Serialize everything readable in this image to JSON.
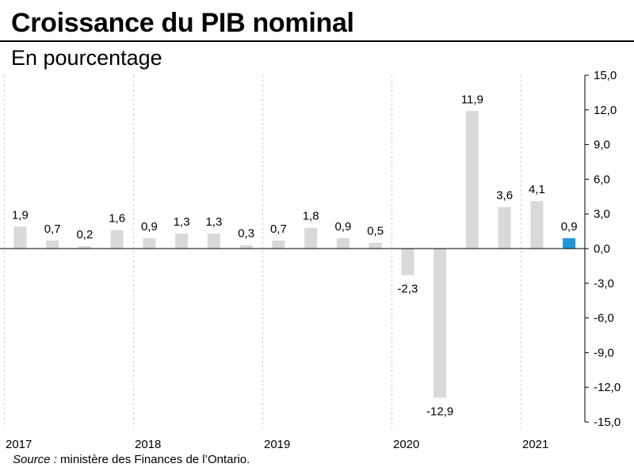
{
  "title": "Croissance du PIB nominal",
  "subtitle": "En pourcentage",
  "source": {
    "label": "Source :",
    "text": " ministère des Finances de l’Ontario."
  },
  "colors": {
    "bar": "#d9d9d9",
    "highlight": "#1f98dd",
    "grid": "#d0d0d0",
    "axis": "#000000"
  },
  "chart_data": {
    "type": "bar",
    "title": "Croissance du PIB nominal",
    "subtitle": "En pourcentage",
    "ylim": [
      -15,
      15
    ],
    "yticks": [
      "15,0",
      "12,0",
      "9,0",
      "6,0",
      "3,0",
      "0,0",
      "-3,0",
      "-6,0",
      "-9,0",
      "-12,0",
      "-15,0"
    ],
    "years": [
      "2017",
      "2018",
      "2019",
      "2020",
      "2021"
    ],
    "values": [
      1.9,
      0.7,
      0.2,
      1.6,
      0.9,
      1.3,
      1.3,
      0.3,
      0.7,
      1.8,
      0.9,
      0.5,
      -2.3,
      -12.9,
      11.9,
      3.6,
      4.1,
      0.9
    ],
    "labels": [
      "1,9",
      "0,7",
      "0,2",
      "1,6",
      "0,9",
      "1,3",
      "1,3",
      "0,3",
      "0,7",
      "1,8",
      "0,9",
      "0,5",
      "-2,3",
      "-12,9",
      "11,9",
      "3,6",
      "4,1",
      "0,9"
    ],
    "highlight_index": 17,
    "grid": "vertical dashed at year boundaries",
    "legend": "none"
  }
}
